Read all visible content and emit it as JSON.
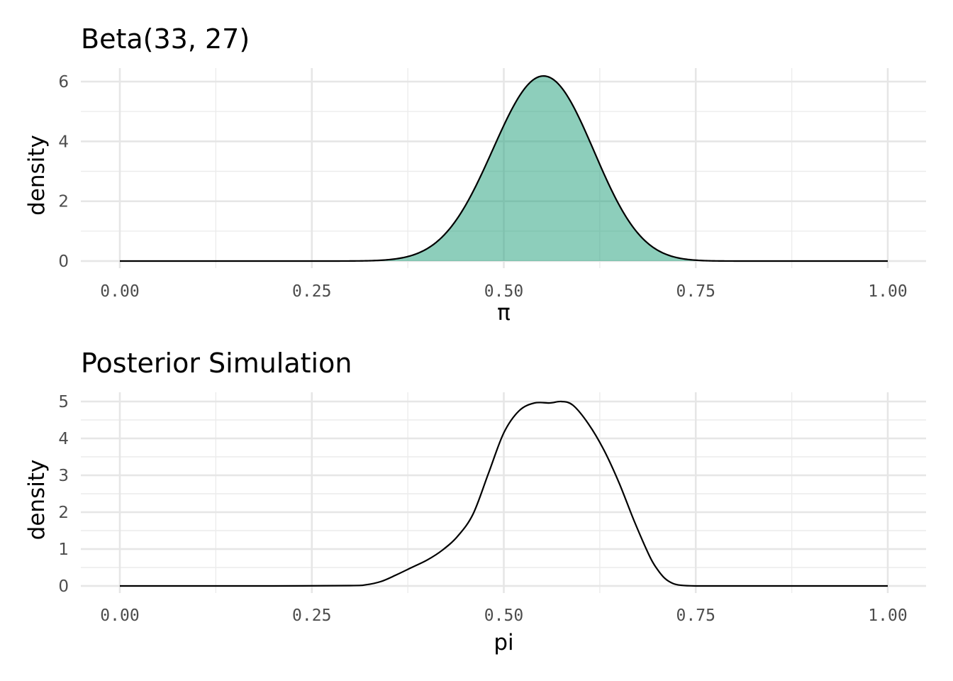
{
  "chart_data": [
    {
      "type": "area",
      "title": "Beta(33, 27)",
      "xlabel": "π",
      "ylabel": "density",
      "distribution": {
        "family": "Beta",
        "alpha": 33,
        "beta": 27
      },
      "xlim": [
        0,
        1
      ],
      "ylim": [
        0,
        6.2
      ],
      "x_ticks": [
        0,
        0.25,
        0.5,
        0.75,
        1
      ],
      "x_tick_labels": [
        "0.00",
        "0.25",
        "0.50",
        "0.75",
        "1.00"
      ],
      "y_ticks": [
        0,
        2,
        4,
        6
      ],
      "y_tick_labels": [
        "0",
        "2",
        "4",
        "6"
      ],
      "fill_color": "#1b9e77",
      "line_color": "#000000",
      "grid": true,
      "peak": {
        "x": 0.552,
        "y": 6.18
      }
    },
    {
      "type": "line",
      "title": "Posterior Simulation",
      "xlabel": "pi",
      "ylabel": "density",
      "xlim": [
        0,
        1
      ],
      "ylim": [
        0,
        5
      ],
      "x_ticks": [
        0,
        0.25,
        0.5,
        0.75,
        1
      ],
      "x_tick_labels": [
        "0.00",
        "0.25",
        "0.50",
        "0.75",
        "1.00"
      ],
      "y_ticks": [
        0,
        1,
        2,
        3,
        4,
        5
      ],
      "y_tick_labels": [
        "0",
        "1",
        "2",
        "3",
        "4",
        "5"
      ],
      "line_color": "#000000",
      "grid": true,
      "x": [
        0,
        0.1,
        0.2,
        0.3,
        0.32,
        0.34,
        0.36,
        0.38,
        0.4,
        0.42,
        0.44,
        0.46,
        0.48,
        0.5,
        0.52,
        0.54,
        0.56,
        0.575,
        0.59,
        0.61,
        0.63,
        0.65,
        0.67,
        0.69,
        0.7,
        0.71,
        0.72,
        0.73,
        0.75,
        0.8,
        0.9,
        1
      ],
      "y": [
        0,
        0,
        0,
        0.01,
        0.03,
        0.12,
        0.3,
        0.5,
        0.7,
        0.97,
        1.35,
        1.95,
        3.05,
        4.15,
        4.75,
        4.96,
        4.96,
        5.0,
        4.9,
        4.4,
        3.7,
        2.8,
        1.75,
        0.8,
        0.45,
        0.2,
        0.07,
        0.02,
        0,
        0,
        0,
        0
      ]
    }
  ]
}
